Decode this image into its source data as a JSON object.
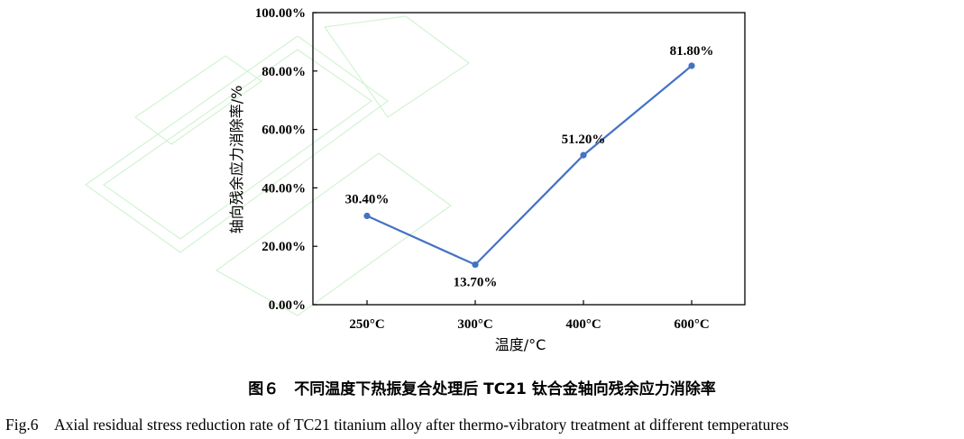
{
  "chart_data": {
    "type": "line",
    "categories": [
      "250°C",
      "300°C",
      "400°C",
      "600°C"
    ],
    "series": [
      {
        "values": [
          30.4,
          13.7,
          51.2,
          81.8
        ]
      }
    ],
    "data_labels": [
      "30.40%",
      "13.70%",
      "51.20%",
      "81.80%"
    ],
    "xlabel": "温度/°C",
    "ylabel": "轴向残余应力消除率/%",
    "ylim": [
      0,
      100
    ],
    "yticks": [
      "0.00%",
      "20.00%",
      "40.00%",
      "60.00%",
      "80.00%",
      "100.00%"
    ],
    "grid": false,
    "line_color": "#4472c4"
  },
  "caption": {
    "cn": "图６　不同温度下热振复合处理后 TC21 钛合金轴向残余应力消除率",
    "en": "Fig.6　Axial residual stress reduction rate of TC21 titanium alloy after thermo-vibratory treatment at different temperatures"
  }
}
